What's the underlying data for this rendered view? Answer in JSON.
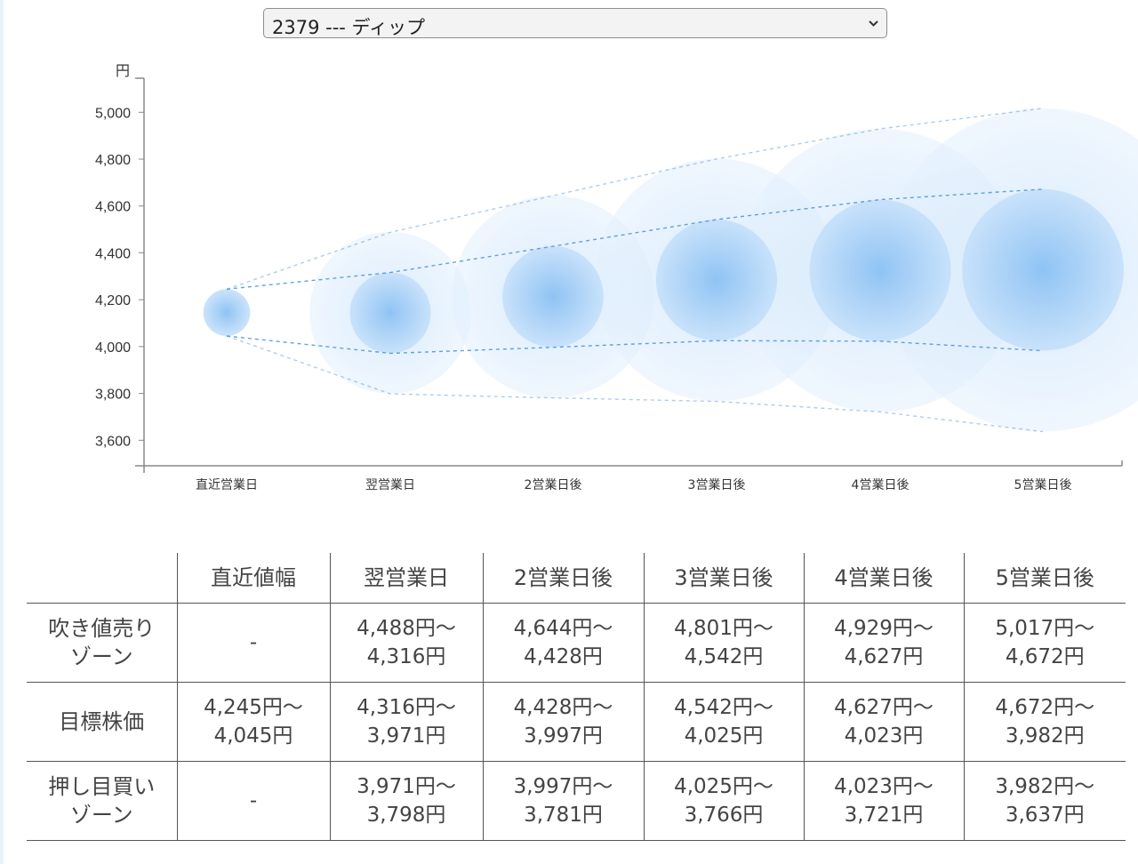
{
  "stock_select": {
    "selected": "2379 --- ディップ"
  },
  "colors": {
    "bubble": "#2f86e6",
    "dashed_line": "#4a90d9",
    "axis": "#888888",
    "table_border": "#555555"
  },
  "chart_data": {
    "type": "scatter",
    "description_source": "bubble range forecast chart",
    "y_unit": "円",
    "ylim": [
      3450,
      5100
    ],
    "y_ticks": [
      3600,
      3800,
      4000,
      4200,
      4400,
      4600,
      4800,
      5000
    ],
    "y_tick_labels": [
      "3,600",
      "3,800",
      "4,000",
      "4,200",
      "4,400",
      "4,600",
      "4,800",
      "5,000"
    ],
    "categories": [
      "直近営業日",
      "翌営業日",
      "2営業日後",
      "3営業日後",
      "4営業日後",
      "5営業日後"
    ],
    "points": [
      {
        "center": 4145,
        "inner_upper": 4245,
        "inner_lower": 4045,
        "outer_upper": 4245,
        "outer_lower": 4045
      },
      {
        "center": 4144,
        "inner_upper": 4316,
        "inner_lower": 3971,
        "outer_upper": 4488,
        "outer_lower": 3798
      },
      {
        "center": 4213,
        "inner_upper": 4428,
        "inner_lower": 3997,
        "outer_upper": 4644,
        "outer_lower": 3781
      },
      {
        "center": 4284,
        "inner_upper": 4542,
        "inner_lower": 4025,
        "outer_upper": 4801,
        "outer_lower": 3766
      },
      {
        "center": 4325,
        "inner_upper": 4627,
        "inner_lower": 4023,
        "outer_upper": 4929,
        "outer_lower": 3721
      },
      {
        "center": 4327,
        "inner_upper": 4672,
        "inner_lower": 3982,
        "outer_upper": 5017,
        "outer_lower": 3637
      }
    ]
  },
  "table": {
    "headers": [
      "",
      "直近値幅",
      "翌営業日",
      "2営業日後",
      "3営業日後",
      "4営業日後",
      "5営業日後"
    ],
    "rows": [
      {
        "label_line1": "吹き値売り",
        "label_line2": "ゾーン",
        "cells": [
          {
            "line1": "-",
            "line2": ""
          },
          {
            "line1": "4,488円〜",
            "line2": "4,316円"
          },
          {
            "line1": "4,644円〜",
            "line2": "4,428円"
          },
          {
            "line1": "4,801円〜",
            "line2": "4,542円"
          },
          {
            "line1": "4,929円〜",
            "line2": "4,627円"
          },
          {
            "line1": "5,017円〜",
            "line2": "4,672円"
          }
        ]
      },
      {
        "label_line1": "目標株価",
        "label_line2": "",
        "cells": [
          {
            "line1": "4,245円〜",
            "line2": "4,045円"
          },
          {
            "line1": "4,316円〜",
            "line2": "3,971円"
          },
          {
            "line1": "4,428円〜",
            "line2": "3,997円"
          },
          {
            "line1": "4,542円〜",
            "line2": "4,025円"
          },
          {
            "line1": "4,627円〜",
            "line2": "4,023円"
          },
          {
            "line1": "4,672円〜",
            "line2": "3,982円"
          }
        ]
      },
      {
        "label_line1": "押し目買い",
        "label_line2": "ゾーン",
        "cells": [
          {
            "line1": "-",
            "line2": ""
          },
          {
            "line1": "3,971円〜",
            "line2": "3,798円"
          },
          {
            "line1": "3,997円〜",
            "line2": "3,781円"
          },
          {
            "line1": "4,025円〜",
            "line2": "3,766円"
          },
          {
            "line1": "4,023円〜",
            "line2": "3,721円"
          },
          {
            "line1": "3,982円〜",
            "line2": "3,637円"
          }
        ]
      }
    ]
  }
}
